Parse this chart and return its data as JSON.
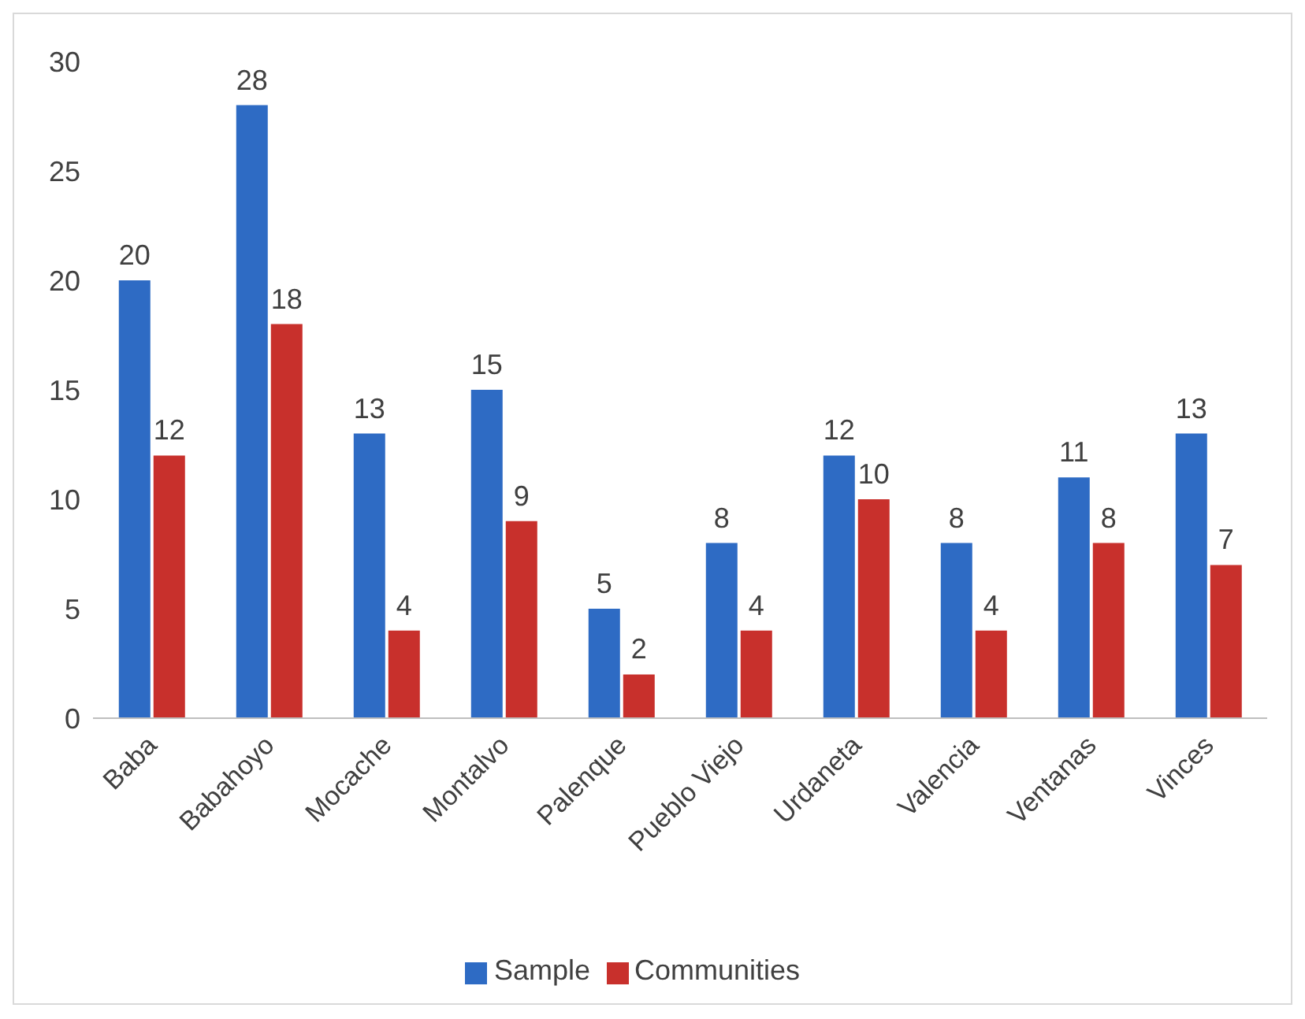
{
  "chart_data": {
    "type": "bar",
    "categories": [
      "Baba",
      "Babahoyo",
      "Mocache",
      "Montalvo",
      "Palenque",
      "Pueblo Viejo",
      "Urdaneta",
      "Valencia",
      "Ventanas",
      "Vinces"
    ],
    "series": [
      {
        "name": "Sample",
        "color": "#2e6bc4",
        "values": [
          20,
          28,
          13,
          15,
          5,
          8,
          12,
          8,
          11,
          13
        ]
      },
      {
        "name": "Communities",
        "color": "#c8302c",
        "values": [
          12,
          18,
          4,
          9,
          2,
          4,
          10,
          4,
          8,
          7
        ]
      }
    ],
    "ylim": [
      0,
      30
    ],
    "yticks": [
      0,
      5,
      10,
      15,
      20,
      25,
      30
    ],
    "grid": false,
    "legend": "bottom",
    "data_labels": true
  }
}
